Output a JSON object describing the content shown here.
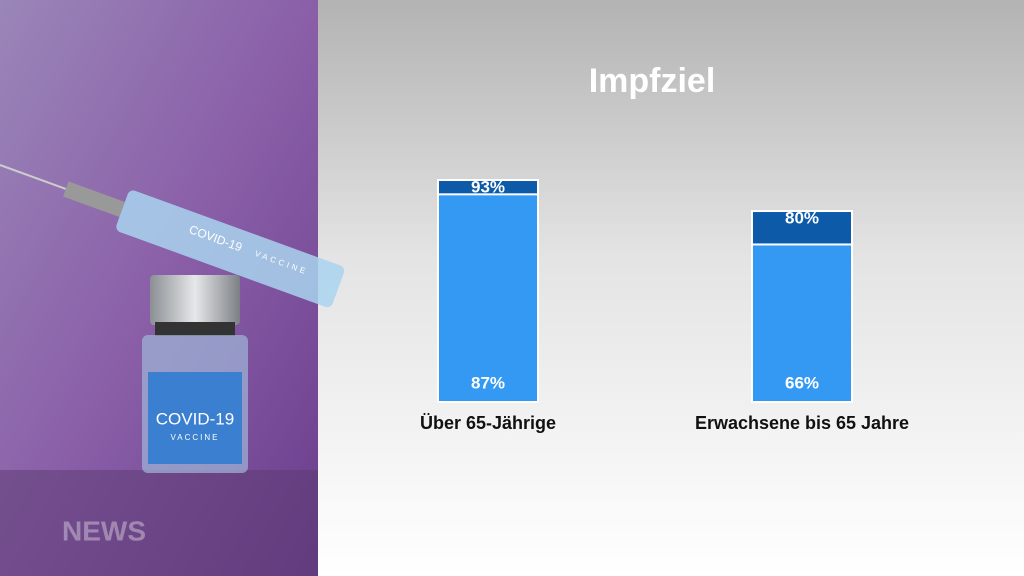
{
  "chart_data": {
    "type": "bar",
    "title": "Impfziel",
    "categories": [
      "Über 65-Jährige",
      "Erwachsene bis 65 Jahre"
    ],
    "series": [
      {
        "color": "#0d5aa8",
        "values": [
          93,
          80
        ],
        "value_labels": [
          "93%",
          "80%"
        ]
      },
      {
        "color": "#3399f3",
        "values": [
          87,
          66
        ],
        "value_labels": [
          "87%",
          "66%"
        ]
      }
    ],
    "ylim": [
      0,
      100
    ]
  },
  "photo": {
    "syringe_label": "COVID-19",
    "syringe_sub": "VACCINE",
    "vial_label": "COVID-19",
    "vial_sub": "VACCINE",
    "watermark": "NEWS"
  }
}
